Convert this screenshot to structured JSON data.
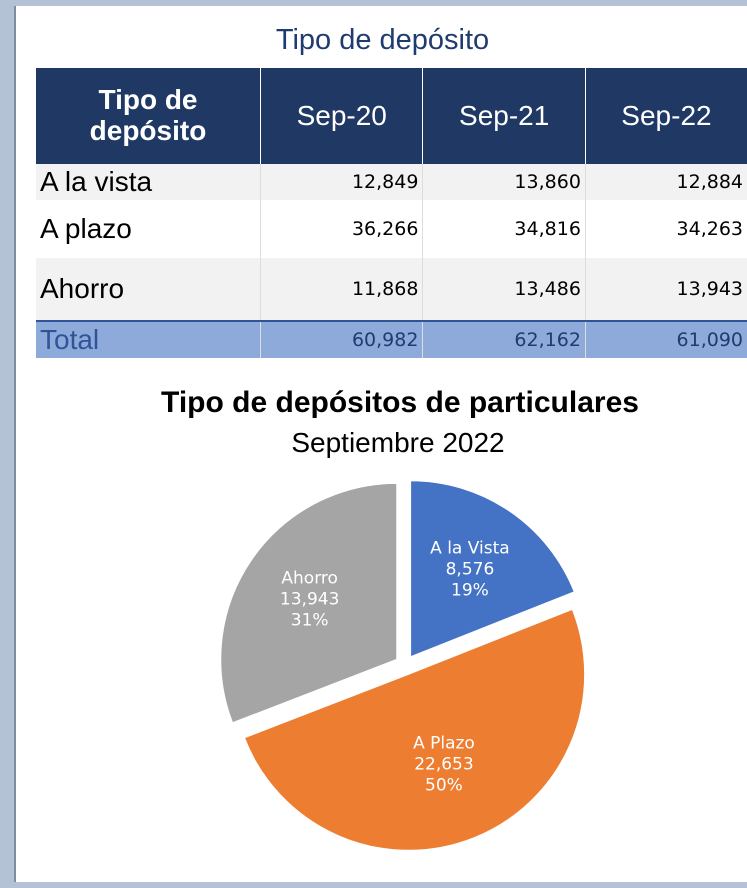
{
  "title": "Tipo de depósito",
  "table": {
    "header": [
      "Tipo de depósito",
      "Sep-20",
      "Sep-21",
      "Sep-22"
    ],
    "rows": [
      [
        "A la vista",
        "12,849",
        "13,860",
        "12,884"
      ],
      [
        "A plazo",
        "36,266",
        "34,816",
        "34,263"
      ],
      [
        "Ahorro",
        "11,868",
        "13,486",
        "13,943"
      ],
      [
        "Total",
        "60,982",
        "62,162",
        "61,090"
      ]
    ]
  },
  "chart_data": {
    "type": "pie",
    "title": "Tipo de depósitos de particulares",
    "subtitle": "Septiembre 2022",
    "categories": [
      "A la Vista",
      "A Plazo",
      "Ahorro"
    ],
    "values": [
      8576,
      22653,
      13943
    ],
    "value_labels": [
      "8,576",
      "22,653",
      "13,943"
    ],
    "percent_labels": [
      "19%",
      "50%",
      "31%"
    ],
    "colors": [
      "#4472c4",
      "#ed7d31",
      "#a5a5a5"
    ]
  }
}
